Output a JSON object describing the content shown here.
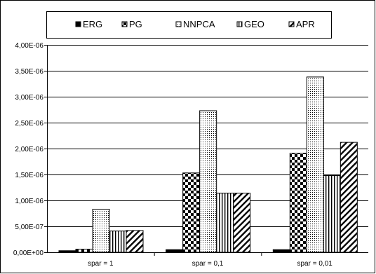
{
  "chart_data": {
    "type": "bar",
    "categories": [
      "spar = 1",
      "spar = 0,1",
      "spar = 0,01"
    ],
    "series": [
      {
        "name": "ERG",
        "values": [
          3e-08,
          5e-08,
          5e-08
        ],
        "pattern": "solid"
      },
      {
        "name": "PG",
        "values": [
          6e-08,
          1.53e-06,
          1.91e-06
        ],
        "pattern": "checker"
      },
      {
        "name": "NNPCA",
        "values": [
          8.3e-07,
          2.73e-06,
          3.38e-06
        ],
        "pattern": "dots"
      },
      {
        "name": "GEO",
        "values": [
          4.1e-07,
          1.14e-06,
          1.48e-06
        ],
        "pattern": "vlines"
      },
      {
        "name": "APR",
        "values": [
          4.2e-07,
          1.14e-06,
          2.12e-06
        ],
        "pattern": "diag"
      }
    ],
    "y_ticks": [
      "0,00E+00",
      "5,00E-07",
      "1,00E-06",
      "1,50E-06",
      "2,00E-06",
      "2,50E-06",
      "3,00E-06",
      "3,50E-06",
      "4,00E-06"
    ],
    "ylim": [
      0,
      4e-06
    ],
    "grid": true,
    "legend_position": "top"
  }
}
